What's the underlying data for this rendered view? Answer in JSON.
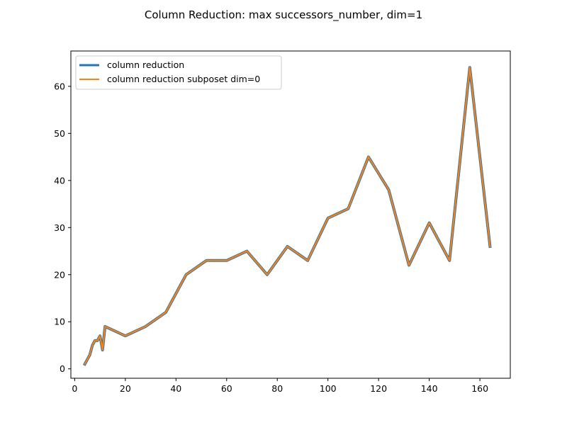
{
  "chart_data": {
    "type": "line",
    "title": "Column Reduction: max successors_number, dim=1",
    "xlabel": "",
    "ylabel": "",
    "xlim": [
      -1.5,
      172
    ],
    "ylim": [
      -2,
      67.5
    ],
    "xticks": [
      0,
      20,
      40,
      60,
      80,
      100,
      120,
      140,
      160
    ],
    "yticks": [
      0,
      10,
      20,
      30,
      40,
      50,
      60
    ],
    "grid": false,
    "legend": "top-left",
    "series": [
      {
        "name": "column reduction",
        "color": "#1f77b4",
        "x": [
          4,
          5,
          6,
          7,
          8,
          9,
          10,
          11,
          12,
          20,
          28,
          36,
          44,
          52,
          60,
          68,
          76,
          84,
          92,
          100,
          108,
          116,
          124,
          132,
          140,
          148,
          156,
          164
        ],
        "y": [
          1,
          2,
          3,
          5,
          6,
          6,
          7,
          4,
          9,
          7,
          9,
          12,
          20,
          23,
          23,
          25,
          20,
          26,
          23,
          32,
          34,
          45,
          38,
          22,
          31,
          23,
          64,
          26
        ]
      },
      {
        "name": "column reduction subposet dim=0",
        "color": "#ff7f0e",
        "x": [
          4,
          5,
          6,
          7,
          8,
          9,
          10,
          11,
          12,
          20,
          28,
          36,
          44,
          52,
          60,
          68,
          76,
          84,
          92,
          100,
          108,
          116,
          124,
          132,
          140,
          148,
          156,
          164
        ],
        "y": [
          1,
          2,
          3,
          5,
          6,
          6,
          7,
          4,
          9,
          7,
          9,
          12,
          20,
          23,
          23,
          25,
          20,
          26,
          23,
          32,
          34,
          45,
          38,
          22,
          31,
          23,
          64,
          26
        ]
      }
    ]
  }
}
